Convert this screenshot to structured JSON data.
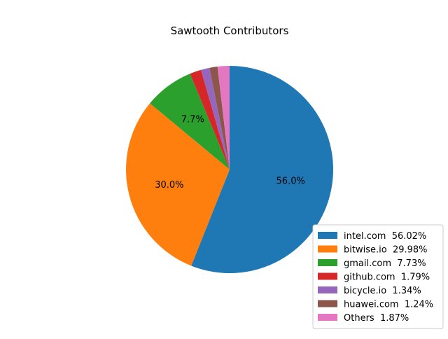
{
  "chart_data": {
    "type": "pie",
    "title": "Sawtooth Contributors",
    "start_angle_deg": 90,
    "direction": "clockwise",
    "slices": [
      {
        "label": "intel.com",
        "value": 56.02,
        "legend": "intel.com  56.02%",
        "pct_label": "56.0%",
        "color": "#1f77b4"
      },
      {
        "label": "bitwise.io",
        "value": 29.98,
        "legend": "bitwise.io  29.98%",
        "pct_label": "30.0%",
        "color": "#ff7f0e"
      },
      {
        "label": "gmail.com",
        "value": 7.73,
        "legend": "gmail.com  7.73%",
        "pct_label": "7.7%",
        "color": "#2ca02c"
      },
      {
        "label": "github.com",
        "value": 1.79,
        "legend": "github.com  1.79%",
        "pct_label": "",
        "color": "#d62728"
      },
      {
        "label": "bicycle.io",
        "value": 1.34,
        "legend": "bicycle.io  1.34%",
        "pct_label": "",
        "color": "#9467bd"
      },
      {
        "label": "huawei.com",
        "value": 1.24,
        "legend": "huawei.com  1.24%",
        "pct_label": "",
        "color": "#8c564b"
      },
      {
        "label": "Others",
        "value": 1.87,
        "legend": "Others  1.87%",
        "pct_label": "",
        "color": "#e377c2"
      }
    ],
    "legend_position": "lower-right"
  }
}
